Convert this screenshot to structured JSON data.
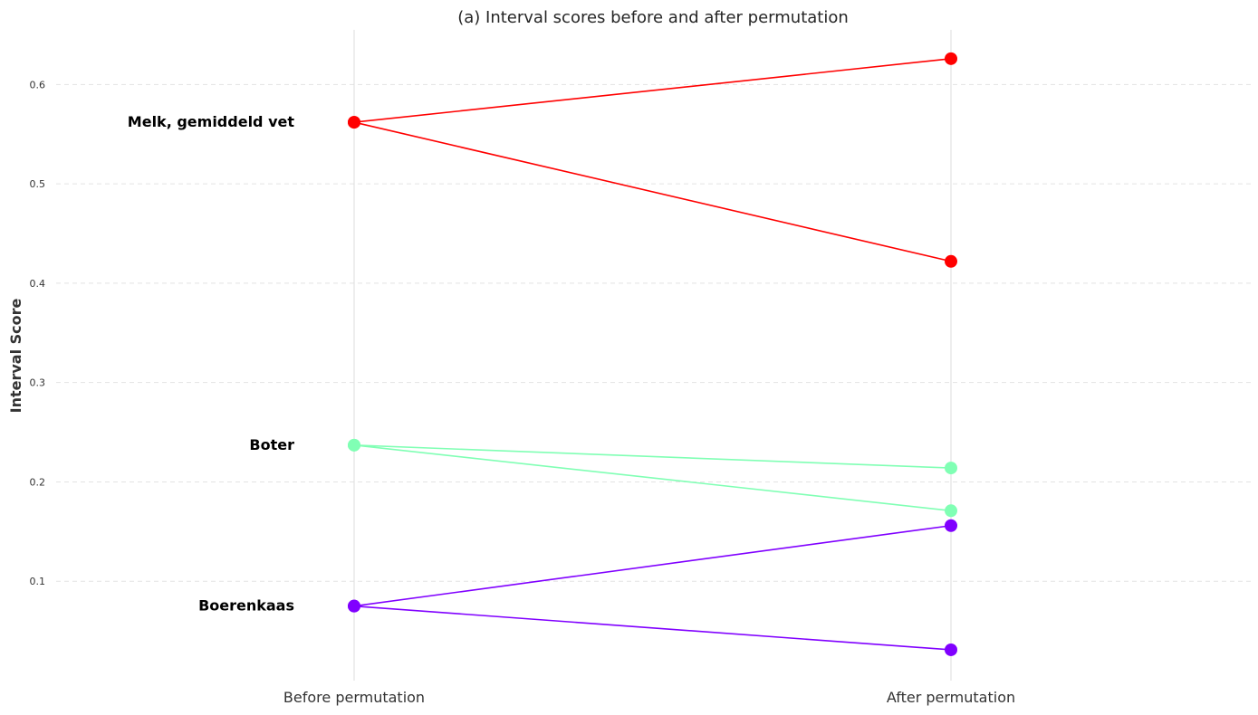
{
  "chart_data": {
    "type": "line",
    "title": "(a) Interval scores before and after permutation",
    "xlabel": "",
    "ylabel": "Interval Score",
    "categories": [
      "Before permutation",
      "After permutation"
    ],
    "ylim": [
      0.0,
      0.655
    ],
    "yticks": [
      "0.1",
      "0.2",
      "0.3",
      "0.4",
      "0.5",
      "0.6"
    ],
    "grid": "horizontal dashed",
    "series": [
      {
        "name": "Melk, gemiddeld vet",
        "color": "#ff0000",
        "values": [
          0.562,
          0.626
        ]
      },
      {
        "name": "Melk, gemiddeld vet",
        "color": "#ff0000",
        "values": [
          0.562,
          0.422
        ]
      },
      {
        "name": "Boter",
        "color": "#80ffb4",
        "values": [
          0.237,
          0.214
        ]
      },
      {
        "name": "Boter",
        "color": "#80ffb4",
        "values": [
          0.237,
          0.171
        ]
      },
      {
        "name": "Boerenkaas",
        "color": "#8000ff",
        "values": [
          0.075,
          0.156
        ]
      },
      {
        "name": "Boerenkaas",
        "color": "#8000ff",
        "values": [
          0.075,
          0.031
        ]
      }
    ],
    "labels": [
      {
        "text": "Melk, gemiddeld vet",
        "value": 0.562,
        "color": "#ff0000"
      },
      {
        "text": "Boter",
        "value": 0.237,
        "color": "#80ffb4"
      },
      {
        "text": "Boerenkaas",
        "value": 0.075,
        "color": "#8000ff"
      }
    ]
  }
}
